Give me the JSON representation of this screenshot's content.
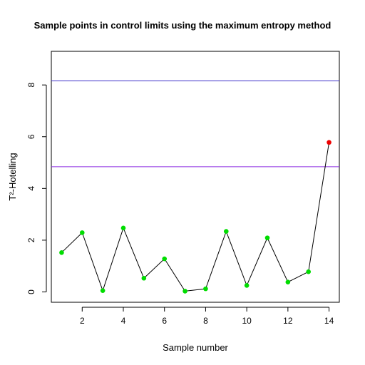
{
  "chart_data": {
    "type": "scatter",
    "title": "Sample points in control limits using the maximum entropy method",
    "xlabel": "Sample number",
    "ylabel": "T²-Hotelling",
    "xlim": [
      0.5,
      14.5
    ],
    "ylim": [
      -0.4,
      9.3
    ],
    "xticks": [
      2,
      4,
      6,
      8,
      10,
      12,
      14
    ],
    "yticks": [
      0,
      2,
      4,
      6,
      8
    ],
    "grid": false,
    "series": [
      {
        "x": [
          1,
          2,
          3,
          4,
          5,
          6,
          7,
          8,
          9,
          10,
          11,
          12,
          13,
          14
        ],
        "values": [
          1.52,
          2.29,
          0.05,
          2.47,
          0.53,
          1.28,
          0.03,
          0.12,
          2.34,
          0.25,
          2.09,
          0.38,
          0.78,
          5.78
        ]
      }
    ],
    "point_colors": [
      "#00dd00",
      "#00dd00",
      "#00dd00",
      "#00dd00",
      "#00dd00",
      "#00dd00",
      "#00dd00",
      "#00dd00",
      "#00dd00",
      "#00dd00",
      "#00dd00",
      "#00dd00",
      "#00dd00",
      "#ee0000"
    ],
    "line_color": "#000000",
    "control_limits": [
      8.16,
      4.84
    ],
    "control_limit_colors": [
      "#3b2fc9",
      "#8a2be2"
    ]
  }
}
